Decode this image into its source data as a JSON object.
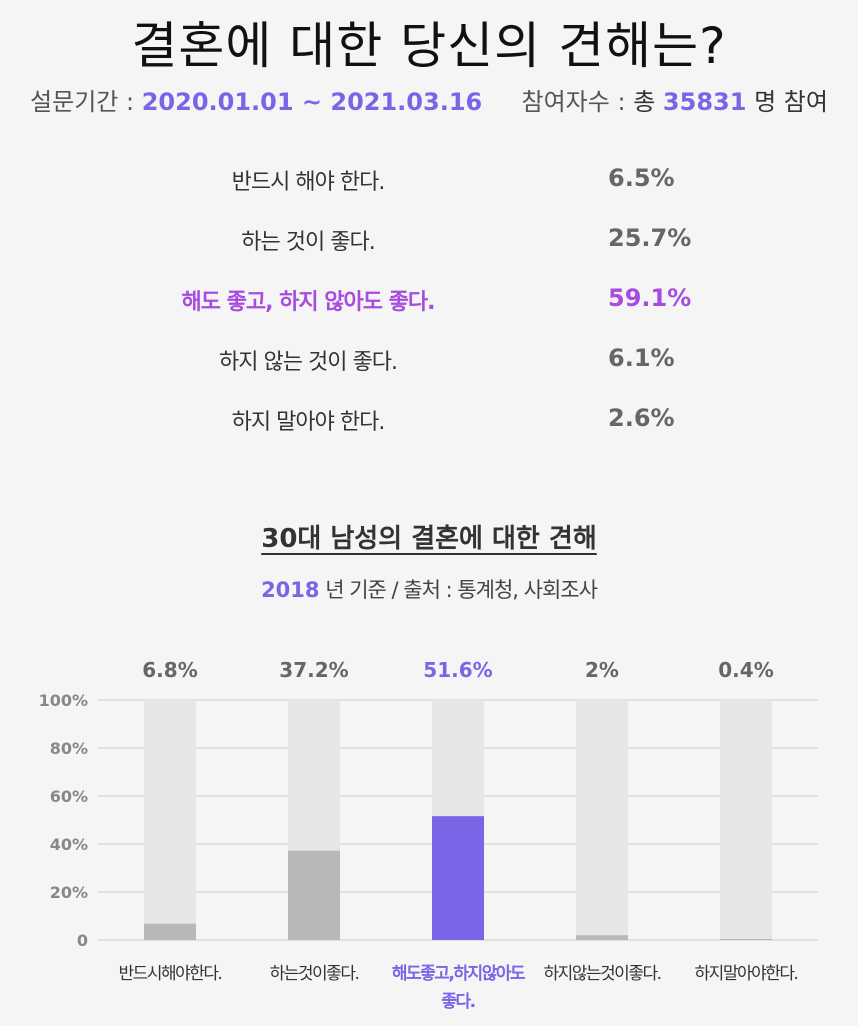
{
  "title": "결혼에 대한 당신의 견해는?",
  "survey": {
    "period_label": "설문기간 :",
    "period_value": "2020.01.01 ~ 2021.03.16",
    "participants_label": "참여자수 :",
    "participants_prefix": "총",
    "participants_count": "35831",
    "participants_suffix": "명 참여"
  },
  "results": [
    {
      "label": "반드시 해야 한다.",
      "value": "6.5%"
    },
    {
      "label": "하는 것이 좋다.",
      "value": "25.7%"
    },
    {
      "label": "해도 좋고, 하지 않아도 좋다.",
      "value": "59.1%",
      "highlight": true
    },
    {
      "label": "하지 않는 것이 좋다.",
      "value": "6.1%"
    },
    {
      "label": "하지 말아야 한다.",
      "value": "2.6%"
    }
  ],
  "chart_title": "30대 남성의 결혼에 대한 견해",
  "chart_subtitle": {
    "year": "2018",
    "rest": "년 기준 / 출처 : 통계청, 사회조사"
  },
  "colors": {
    "accent": "#7866e6",
    "highlight_text": "#a84ce0",
    "bar_gray": "#b8b8b8",
    "bar_track": "#e6e6e6"
  },
  "chart_data": {
    "type": "bar",
    "categories": [
      "반드시해야한다.",
      "하는것이좋다.",
      "해도좋고,하지않아도좋다.",
      "하지않는것이좋다.",
      "하지말아야한다."
    ],
    "category_label_lines": [
      [
        "반드시해야한다."
      ],
      [
        "하는것이좋다."
      ],
      [
        "해도좋고,하지않아도",
        "좋다."
      ],
      [
        "하지않는것이좋다."
      ],
      [
        "하지말아야한다."
      ]
    ],
    "values": [
      6.8,
      37.2,
      51.6,
      2,
      0.4
    ],
    "value_labels": [
      "6.8%",
      "37.2%",
      "51.6%",
      "2%",
      "0.4%"
    ],
    "highlight_index": 2,
    "y_ticks": [
      "0",
      "20%",
      "40%",
      "60%",
      "80%",
      "100%"
    ],
    "ylim": [
      0,
      100
    ],
    "grid": true
  }
}
